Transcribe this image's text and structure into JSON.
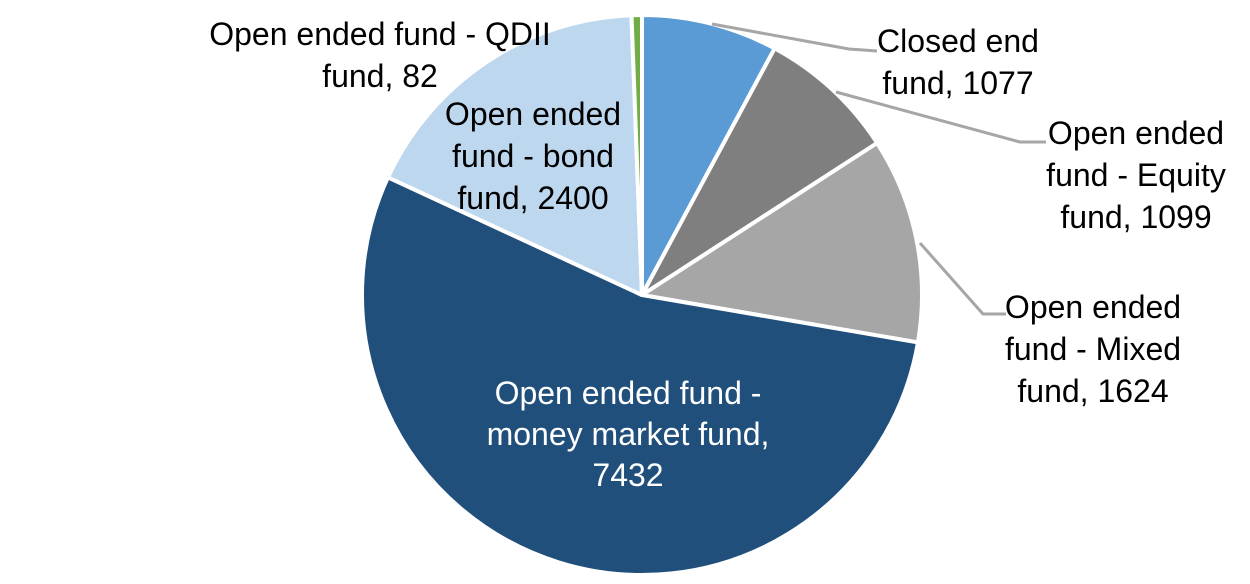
{
  "chart_data": {
    "type": "pie",
    "title": "",
    "background": "#FFFFFF",
    "direction": "clockwise",
    "start_angle_deg": 0,
    "total": 13714,
    "slice_border_color": "#FFFFFF",
    "leader_line_color": "#A6A6A6",
    "slices": [
      {
        "label": "Closed end fund",
        "value": 1077,
        "color": "#5B9BD5",
        "label_lines": [
          "Closed end",
          "fund, 1077"
        ],
        "label_placement": "outside",
        "text_color": "#000000",
        "leader_line": true
      },
      {
        "label": "Open ended fund - Equity fund",
        "value": 1099,
        "color": "#7F7F7F",
        "label_lines": [
          "Open ended",
          "fund - Equity",
          "fund, 1099"
        ],
        "label_placement": "outside",
        "text_color": "#000000",
        "leader_line": true
      },
      {
        "label": "Open ended fund - Mixed fund",
        "value": 1624,
        "color": "#A6A6A6",
        "label_lines": [
          "Open ended",
          "fund - Mixed",
          "fund, 1624"
        ],
        "label_placement": "outside",
        "text_color": "#000000",
        "leader_line": true
      },
      {
        "label": "Open ended fund - money market fund",
        "value": 7432,
        "color": "#204F7B",
        "label_lines": [
          "Open ended fund -",
          "money market fund,",
          "7432"
        ],
        "label_placement": "inside",
        "text_color": "#FFFFFF",
        "leader_line": false
      },
      {
        "label": "Open ended fund - bond fund",
        "value": 2400,
        "color": "#BDD7EE",
        "label_lines": [
          "Open ended",
          "fund - bond",
          "fund, 2400"
        ],
        "label_placement": "inside",
        "text_color": "#000000",
        "leader_line": false
      },
      {
        "label": "Open ended fund - QDII fund",
        "value": 82,
        "color": "#70AD47",
        "label_lines": [
          "Open ended fund - QDII",
          "fund, 82"
        ],
        "label_placement": "outside",
        "text_color": "#000000",
        "leader_line": false
      }
    ]
  }
}
